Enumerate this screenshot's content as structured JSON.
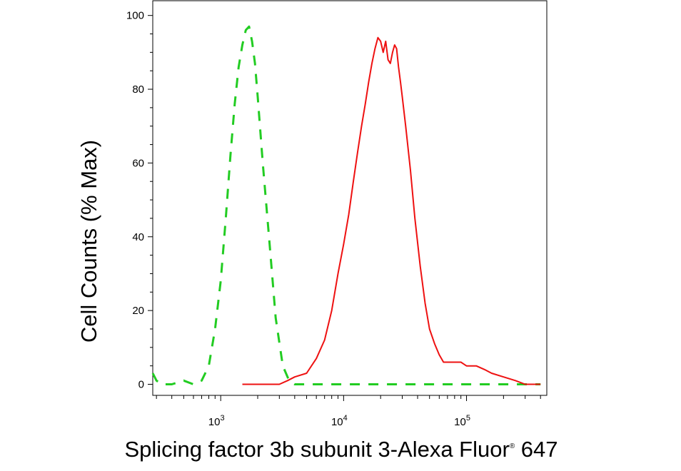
{
  "chart_data": {
    "type": "line",
    "xlabel": "Splicing factor 3b subunit 3-Alexa Fluor",
    "xlabel_reg": "®",
    "xlabel_suffix": " 647",
    "ylabel": "Cell Counts (% Max)",
    "x_scale": "log",
    "xlim": [
      280,
      450000
    ],
    "ylim": [
      -3,
      104
    ],
    "y_ticks": [
      {
        "value": 0,
        "label": "0"
      },
      {
        "value": 20,
        "label": "20"
      },
      {
        "value": 40,
        "label": "40"
      },
      {
        "value": 60,
        "label": "60"
      },
      {
        "value": 80,
        "label": "80"
      },
      {
        "value": 100,
        "label": "100"
      }
    ],
    "x_major_ticks": [
      {
        "value": 1000,
        "base": "10",
        "exp": "3"
      },
      {
        "value": 10000,
        "base": "10",
        "exp": "4"
      },
      {
        "value": 100000,
        "base": "10",
        "exp": "5"
      }
    ],
    "grid": false,
    "legend": "none",
    "series": [
      {
        "color": "#22cc22",
        "style": "dashed",
        "x": [
          280,
          300,
          330,
          400,
          500,
          600,
          700,
          800,
          900,
          1000,
          1100,
          1200,
          1300,
          1400,
          1500,
          1600,
          1700,
          1800,
          1900,
          2000,
          2200,
          2500,
          2800,
          3200,
          3600,
          4000,
          5000,
          10000,
          50000,
          100000,
          200000,
          400000
        ],
        "y": [
          3,
          1,
          0,
          0,
          1,
          0,
          1,
          5,
          15,
          28,
          45,
          62,
          76,
          86,
          92,
          96,
          97,
          93,
          87,
          78,
          60,
          38,
          18,
          5,
          1,
          0,
          0,
          0,
          0,
          0,
          0,
          0
        ]
      },
      {
        "color": "#ee1111",
        "style": "solid",
        "x": [
          1500,
          2000,
          2500,
          3000,
          3500,
          4000,
          5000,
          6000,
          7000,
          8000,
          9000,
          10000,
          11000,
          12000,
          13000,
          14000,
          15000,
          16000,
          17000,
          18000,
          19000,
          20000,
          21000,
          22000,
          23000,
          24000,
          25000,
          26000,
          27000,
          28000,
          29000,
          30000,
          32000,
          35000,
          38000,
          42000,
          46000,
          50000,
          55000,
          60000,
          65000,
          70000,
          80000,
          90000,
          100000,
          120000,
          140000,
          160000,
          200000,
          250000,
          300000,
          350000,
          400000
        ],
        "y": [
          0,
          0,
          0,
          0,
          1,
          2,
          3,
          7,
          12,
          20,
          30,
          38,
          46,
          55,
          63,
          70,
          76,
          82,
          87,
          91,
          94,
          93,
          90,
          93,
          88,
          87,
          90,
          92,
          91,
          86,
          82,
          78,
          70,
          58,
          45,
          32,
          22,
          15,
          11,
          8,
          6,
          6,
          6,
          6,
          5,
          5,
          4,
          3,
          2,
          1,
          0,
          0,
          0
        ]
      }
    ]
  }
}
